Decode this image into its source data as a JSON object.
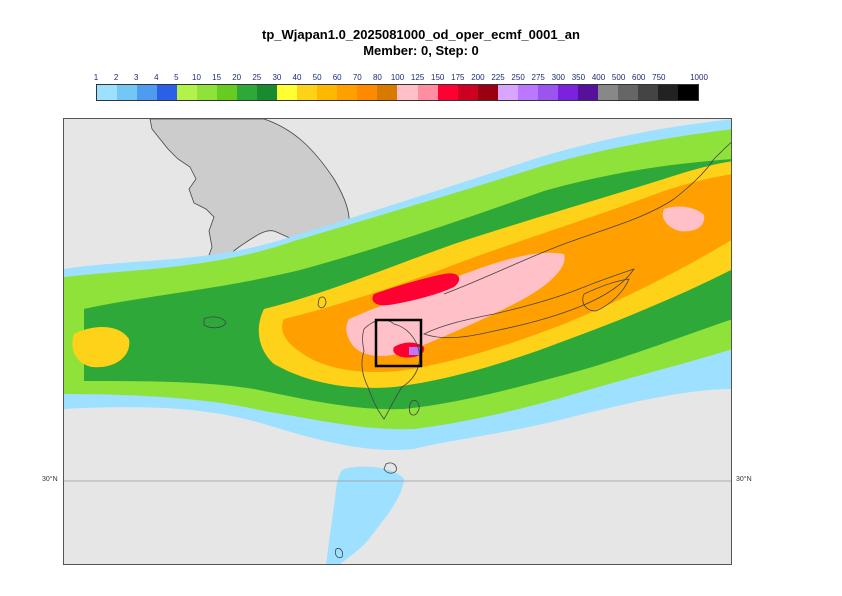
{
  "title": {
    "line1": "tp_Wjapan1.0_2025081000_od_oper_ecmf_0001_an",
    "line2": "Member: 0, Step: 0"
  },
  "colorbar": {
    "labels": [
      "1",
      "2",
      "3",
      "4",
      "5",
      "10",
      "15",
      "20",
      "25",
      "30",
      "40",
      "50",
      "60",
      "70",
      "80",
      "100",
      "125",
      "150",
      "175",
      "200",
      "225",
      "250",
      "275",
      "300",
      "350",
      "400",
      "500",
      "600",
      "750",
      "1000"
    ],
    "colors": [
      "#9ee0ff",
      "#74c6f5",
      "#4e9bf0",
      "#2c5fe8",
      "#b3f24a",
      "#8ee23a",
      "#66cc22",
      "#2fa83a",
      "#1a8a30",
      "#ffff33",
      "#ffd21a",
      "#ffb800",
      "#ffa000",
      "#ff8a00",
      "#d97a00",
      "#ffc0c8",
      "#ff8fa0",
      "#ff0033",
      "#cc0022",
      "#990011",
      "#d9a6ff",
      "#bb77ff",
      "#9955ee",
      "#7a22dd",
      "#551199",
      "#888888",
      "#666666",
      "#444444",
      "#222222",
      "#000000"
    ]
  },
  "map": {
    "background_color": "#e6e6e6",
    "land_color": "#cccccc",
    "coastline_color": "#444444",
    "highlight_box_color": "#000000"
  },
  "gridlines": {
    "lat_label_left": "30°N",
    "lat_label_right": "30°N"
  }
}
